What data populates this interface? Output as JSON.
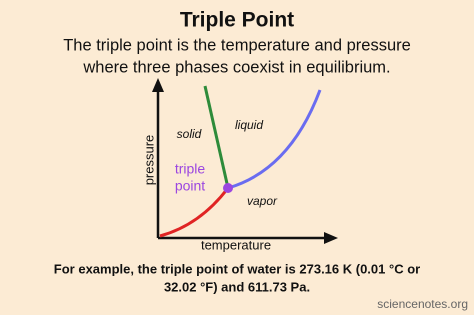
{
  "header": {
    "title": "Triple Point",
    "subtitle_lines": [
      "The triple point is the temperature and pressure",
      "where three phases coexist in equilibrium."
    ]
  },
  "diagram": {
    "y_axis_label": "pressure",
    "x_axis_label": "temperature",
    "regions": [
      "solid",
      "liquid",
      "vapor"
    ],
    "point_label_lines": [
      "triple",
      "point"
    ]
  },
  "footer": {
    "lines": [
      "For example, the triple point of water is 273.16 K (0.01 °C or",
      "32.02 °F) and 611.73 Pa."
    ],
    "source": "sciencenotes.org"
  }
}
